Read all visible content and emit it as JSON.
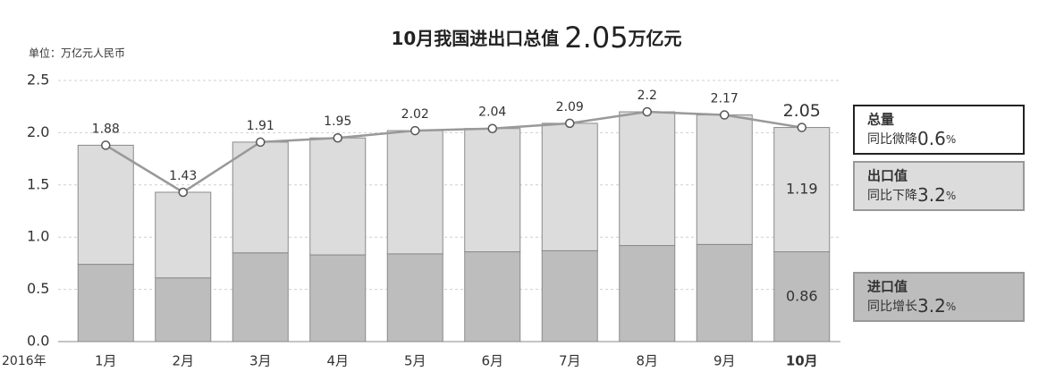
{
  "chart_data": {
    "type": "stacked-bar-line",
    "title": {
      "prefix": "10月我国进出口总值",
      "value": 2.05,
      "unit": "万亿元"
    },
    "unit_label": "单位：万亿元人民币",
    "x_prefix": "2016年",
    "categories": [
      "1月",
      "2月",
      "3月",
      "4月",
      "5月",
      "6月",
      "7月",
      "8月",
      "9月",
      "10月"
    ],
    "series": [
      {
        "name": "进口值",
        "note": "同比增长",
        "change": 3.2,
        "change_unit": "%",
        "color": "#bdbdbd",
        "values": [
          0.74,
          0.61,
          0.85,
          0.83,
          0.84,
          0.86,
          0.87,
          0.92,
          0.93,
          0.86
        ]
      },
      {
        "name": "出口值",
        "note": "同比下降",
        "change": 3.2,
        "change_unit": "%",
        "color": "#dcdcdc",
        "values": [
          1.14,
          0.82,
          1.06,
          1.12,
          1.18,
          1.18,
          1.22,
          1.28,
          1.24,
          1.19
        ]
      }
    ],
    "total": {
      "name": "总量",
      "note": "同比微降",
      "change": 0.6,
      "change_unit": "%",
      "color": "#999999",
      "values": [
        1.88,
        1.43,
        1.91,
        1.95,
        2.02,
        2.04,
        2.09,
        2.2,
        2.17,
        2.05
      ]
    },
    "ylim": [
      0,
      2.5
    ],
    "yticks": [
      {
        "value": 0,
        "label": "0.0"
      },
      0.5,
      {
        "value": 1,
        "label": "1.0"
      },
      1.5,
      {
        "value": 2,
        "label": "2.0"
      },
      2.5
    ],
    "grid": true
  }
}
